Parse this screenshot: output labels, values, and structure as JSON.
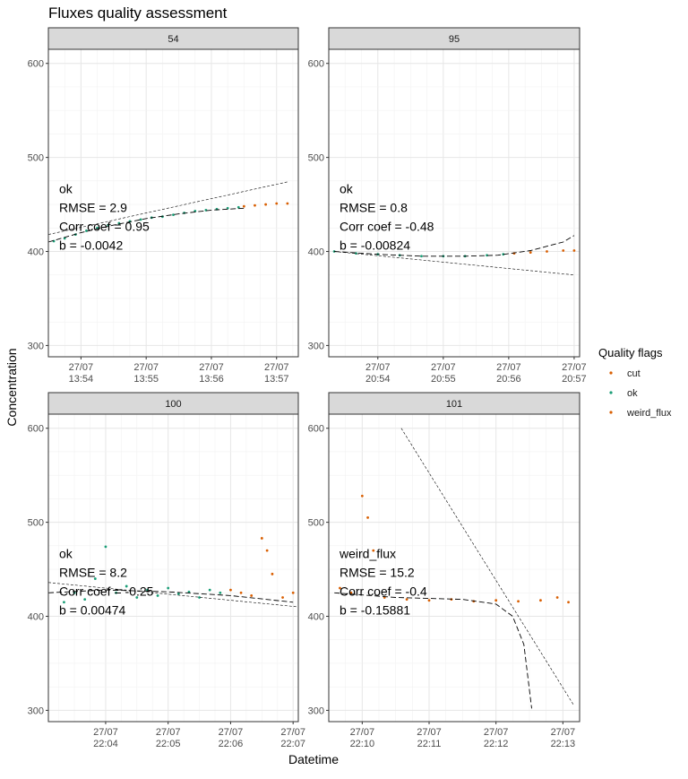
{
  "chart_data": {
    "type": "scatter",
    "title": "Fluxes quality assessment",
    "xlabel": "Datetime",
    "ylabel": "Concentration",
    "ylim": [
      288,
      615
    ],
    "yticks": [
      300,
      400,
      500,
      600
    ],
    "grid": true,
    "legend": {
      "title": "Quality flags",
      "position": "right",
      "items": [
        {
          "label": "cut",
          "color": "#d95f02"
        },
        {
          "label": "ok",
          "color": "#1b9e77"
        },
        {
          "label": "weird_flux",
          "color": "#d95f02"
        }
      ]
    },
    "panels": [
      {
        "strip": "54",
        "x_min": "13:53:30",
        "x_max": "13:57:20",
        "x_ticks": [
          {
            "date": "27/07",
            "time": "13:54"
          },
          {
            "date": "27/07",
            "time": "13:55"
          },
          {
            "date": "27/07",
            "time": "13:56"
          },
          {
            "date": "27/07",
            "time": "13:57"
          }
        ],
        "annotation": {
          "flag": "ok",
          "rmse": "RMSE = 2.9",
          "corr": "Corr coef = 0.95",
          "b": "b = -0.0042"
        },
        "series": [
          {
            "name": "ok",
            "color": "#1b9e77",
            "points": [
              [
                "13:53:35",
                411
              ],
              [
                "13:53:45",
                414
              ],
              [
                "13:53:55",
                418
              ],
              [
                "13:54:05",
                422
              ],
              [
                "13:54:15",
                425
              ],
              [
                "13:54:25",
                428
              ],
              [
                "13:54:35",
                430
              ],
              [
                "13:54:45",
                432
              ],
              [
                "13:54:55",
                434
              ],
              [
                "13:55:05",
                436
              ],
              [
                "13:55:15",
                437
              ],
              [
                "13:55:25",
                439
              ],
              [
                "13:55:35",
                441
              ],
              [
                "13:55:45",
                443
              ],
              [
                "13:55:55",
                444
              ],
              [
                "13:56:05",
                445
              ],
              [
                "13:56:15",
                446
              ],
              [
                "13:56:25",
                447
              ]
            ]
          },
          {
            "name": "cut",
            "color": "#d95f02",
            "points": [
              [
                "13:56:30",
                448
              ],
              [
                "13:56:40",
                449
              ],
              [
                "13:56:50",
                450
              ],
              [
                "13:57:00",
                451
              ],
              [
                "13:57:10",
                451
              ]
            ]
          }
        ],
        "fits": [
          {
            "style": "linear",
            "points": [
              [
                "13:53:30",
                418
              ],
              [
                "13:57:10",
                474
              ]
            ]
          },
          {
            "style": "curve",
            "points": [
              [
                "13:53:30",
                410
              ],
              [
                "13:54:00",
                420
              ],
              [
                "13:54:30",
                428
              ],
              [
                "13:55:00",
                435
              ],
              [
                "13:55:30",
                440
              ],
              [
                "13:56:00",
                444
              ],
              [
                "13:56:30",
                446
              ]
            ]
          }
        ]
      },
      {
        "strip": "95",
        "x_min": "20:53:15",
        "x_max": "20:57:05",
        "x_ticks": [
          {
            "date": "27/07",
            "time": "20:54"
          },
          {
            "date": "27/07",
            "time": "20:55"
          },
          {
            "date": "27/07",
            "time": "20:56"
          },
          {
            "date": "27/07",
            "time": "20:57"
          }
        ],
        "annotation": {
          "flag": "ok",
          "rmse": "RMSE = 0.8",
          "corr": "Corr coef = -0.48",
          "b": "b = -0.00824"
        },
        "series": [
          {
            "name": "ok",
            "color": "#1b9e77",
            "points": [
              [
                "20:53:20",
                400
              ],
              [
                "20:53:40",
                398
              ],
              [
                "20:54:00",
                397
              ],
              [
                "20:54:20",
                396
              ],
              [
                "20:54:40",
                395
              ],
              [
                "20:55:00",
                395
              ],
              [
                "20:55:20",
                395
              ],
              [
                "20:55:40",
                396
              ],
              [
                "20:55:55",
                397
              ]
            ]
          },
          {
            "name": "cut",
            "color": "#d95f02",
            "points": [
              [
                "20:56:05",
                398
              ],
              [
                "20:56:20",
                399
              ],
              [
                "20:56:35",
                400
              ],
              [
                "20:56:50",
                401
              ],
              [
                "20:57:00",
                401
              ]
            ]
          }
        ],
        "fits": [
          {
            "style": "linear",
            "points": [
              [
                "20:53:20",
                400
              ],
              [
                "20:57:00",
                375
              ]
            ]
          },
          {
            "style": "curve",
            "points": [
              [
                "20:53:20",
                400
              ],
              [
                "20:54:00",
                397
              ],
              [
                "20:54:40",
                395
              ],
              [
                "20:55:20",
                395
              ],
              [
                "20:55:50",
                396
              ],
              [
                "20:56:20",
                401
              ],
              [
                "20:56:50",
                410
              ],
              [
                "20:57:00",
                417
              ]
            ]
          }
        ]
      },
      {
        "strip": "100",
        "x_min": "22:03:05",
        "x_max": "22:07:05",
        "x_ticks": [
          {
            "date": "27/07",
            "time": "22:04"
          },
          {
            "date": "27/07",
            "time": "22:05"
          },
          {
            "date": "27/07",
            "time": "22:06"
          },
          {
            "date": "27/07",
            "time": "22:07"
          }
        ],
        "annotation": {
          "flag": "ok",
          "rmse": "RMSE = 8.2",
          "corr": "Corr coef = -0.25",
          "b": "b = 0.00474"
        },
        "series": [
          {
            "name": "ok",
            "color": "#1b9e77",
            "points": [
              [
                "22:03:20",
                415
              ],
              [
                "22:03:30",
                425
              ],
              [
                "22:03:40",
                418
              ],
              [
                "22:03:50",
                440
              ],
              [
                "22:04:00",
                474
              ],
              [
                "22:04:10",
                425
              ],
              [
                "22:04:20",
                432
              ],
              [
                "22:04:30",
                420
              ],
              [
                "22:04:40",
                428
              ],
              [
                "22:04:50",
                422
              ],
              [
                "22:05:00",
                430
              ],
              [
                "22:05:10",
                424
              ],
              [
                "22:05:20",
                426
              ],
              [
                "22:05:30",
                420
              ],
              [
                "22:05:40",
                428
              ],
              [
                "22:05:50",
                425
              ]
            ]
          },
          {
            "name": "cut",
            "color": "#d95f02",
            "points": [
              [
                "22:06:00",
                428
              ],
              [
                "22:06:10",
                425
              ],
              [
                "22:06:20",
                422
              ],
              [
                "22:06:30",
                483
              ],
              [
                "22:06:35",
                470
              ],
              [
                "22:06:40",
                445
              ],
              [
                "22:06:50",
                420
              ],
              [
                "22:07:00",
                425
              ]
            ]
          }
        ],
        "fits": [
          {
            "style": "linear",
            "points": [
              [
                "22:03:05",
                436
              ],
              [
                "22:07:05",
                410
              ]
            ]
          },
          {
            "style": "curve",
            "points": [
              [
                "22:03:05",
                425
              ],
              [
                "22:04:00",
                428
              ],
              [
                "22:05:00",
                426
              ],
              [
                "22:06:00",
                422
              ],
              [
                "22:07:00",
                415
              ]
            ]
          }
        ]
      },
      {
        "strip": "101",
        "x_min": "22:09:30",
        "x_max": "22:13:15",
        "x_ticks": [
          {
            "date": "27/07",
            "time": "22:10"
          },
          {
            "date": "27/07",
            "time": "22:11"
          },
          {
            "date": "27/07",
            "time": "22:12"
          },
          {
            "date": "27/07",
            "time": "22:13"
          }
        ],
        "annotation": {
          "flag": "weird_flux",
          "rmse": "RMSE = 15.2",
          "corr": "Corr coef = -0.4",
          "b": "b = -0.15881"
        },
        "series": [
          {
            "name": "weird_flux",
            "color": "#d95f02",
            "points": [
              [
                "22:09:40",
                430
              ],
              [
                "22:09:50",
                425
              ],
              [
                "22:10:00",
                528
              ],
              [
                "22:10:05",
                505
              ],
              [
                "22:10:10",
                470
              ],
              [
                "22:10:20",
                420
              ],
              [
                "22:10:40",
                418
              ],
              [
                "22:11:00",
                417
              ],
              [
                "22:11:20",
                418
              ],
              [
                "22:11:40",
                416
              ],
              [
                "22:12:00",
                417
              ],
              [
                "22:12:20",
                416
              ],
              [
                "22:12:40",
                417
              ],
              [
                "22:12:55",
                420
              ],
              [
                "22:13:05",
                415
              ]
            ]
          }
        ],
        "fits": [
          {
            "style": "linear",
            "points": [
              [
                "22:10:35",
                600
              ],
              [
                "22:13:10",
                305
              ]
            ]
          },
          {
            "style": "curve",
            "points": [
              [
                "22:09:35",
                425
              ],
              [
                "22:10:30",
                420
              ],
              [
                "22:11:30",
                418
              ],
              [
                "22:12:00",
                413
              ],
              [
                "22:12:15",
                400
              ],
              [
                "22:12:25",
                370
              ],
              [
                "22:12:32",
                302
              ]
            ]
          }
        ]
      }
    ]
  }
}
